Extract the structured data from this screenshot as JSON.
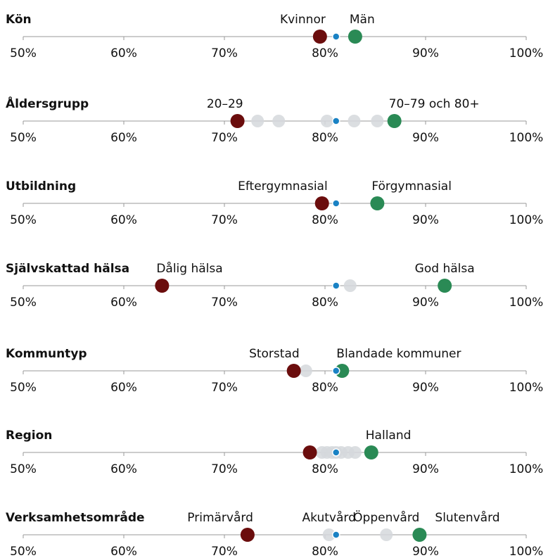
{
  "chart_data": [
    {
      "type": "dot",
      "title": "Kön",
      "xlim": [
        50,
        100
      ],
      "xticks": [
        {
          "value": 50,
          "label": "50%"
        },
        {
          "value": 60,
          "label": "60%"
        },
        {
          "value": 70,
          "label": "70%"
        },
        {
          "value": 80,
          "label": "80%"
        },
        {
          "value": 90,
          "label": "90%"
        },
        {
          "value": 100,
          "label": "100%"
        }
      ],
      "categories": [
        "Kvinnor",
        "Män"
      ],
      "values": [
        79.5,
        83.0
      ],
      "colors": [
        "#6b0d0d",
        "#2a8a55"
      ],
      "average": 81.1,
      "average_color": "#1a82c4"
    },
    {
      "type": "dot",
      "title": "Åldersgrupp",
      "xlim": [
        50,
        100
      ],
      "xticks": [
        {
          "value": 50,
          "label": "50%"
        },
        {
          "value": 60,
          "label": "60%"
        },
        {
          "value": 70,
          "label": "70%"
        },
        {
          "value": 80,
          "label": "80%"
        },
        {
          "value": 90,
          "label": "90%"
        },
        {
          "value": 100,
          "label": "100%"
        }
      ],
      "categories": [
        "20–29",
        null,
        null,
        null,
        null,
        null,
        "70–79 och 80+"
      ],
      "values": [
        71.3,
        73.3,
        75.4,
        80.2,
        82.9,
        85.2,
        86.9
      ],
      "colors": [
        "#6b0d0d",
        "#d5d8dc",
        "#d5d8dc",
        "#d5d8dc",
        "#d5d8dc",
        "#d5d8dc",
        "#2a8a55"
      ],
      "average": 81.1,
      "average_color": "#1a82c4"
    },
    {
      "type": "dot",
      "title": "Utbildning",
      "xlim": [
        50,
        100
      ],
      "xticks": [
        {
          "value": 50,
          "label": "50%"
        },
        {
          "value": 60,
          "label": "60%"
        },
        {
          "value": 70,
          "label": "70%"
        },
        {
          "value": 80,
          "label": "80%"
        },
        {
          "value": 90,
          "label": "90%"
        },
        {
          "value": 100,
          "label": "100%"
        }
      ],
      "categories": [
        "Eftergymnasial",
        "Förgymnasial"
      ],
      "values": [
        79.7,
        85.2
      ],
      "colors": [
        "#6b0d0d",
        "#2a8a55"
      ],
      "average": 81.1,
      "average_color": "#1a82c4"
    },
    {
      "type": "dot",
      "title": "Självskattad hälsa",
      "xlim": [
        50,
        100
      ],
      "xticks": [
        {
          "value": 50,
          "label": "50%"
        },
        {
          "value": 60,
          "label": "60%"
        },
        {
          "value": 70,
          "label": "70%"
        },
        {
          "value": 80,
          "label": "80%"
        },
        {
          "value": 90,
          "label": "90%"
        },
        {
          "value": 100,
          "label": "100%"
        }
      ],
      "categories": [
        "Dålig hälsa",
        null,
        "God hälsa"
      ],
      "values": [
        63.8,
        82.5,
        91.9
      ],
      "colors": [
        "#6b0d0d",
        "#d5d8dc",
        "#2a8a55"
      ],
      "average": 81.1,
      "average_color": "#1a82c4"
    },
    {
      "type": "dot",
      "title": "Kommuntyp",
      "xlim": [
        50,
        100
      ],
      "xticks": [
        {
          "value": 50,
          "label": "50%"
        },
        {
          "value": 60,
          "label": "60%"
        },
        {
          "value": 70,
          "label": "70%"
        },
        {
          "value": 80,
          "label": "80%"
        },
        {
          "value": 90,
          "label": "90%"
        },
        {
          "value": 100,
          "label": "100%"
        }
      ],
      "categories": [
        "Storstad",
        null,
        "Blandade kommuner"
      ],
      "values": [
        76.9,
        78.1,
        81.7
      ],
      "colors": [
        "#6b0d0d",
        "#d5d8dc",
        "#2a8a55"
      ],
      "average": 81.1,
      "average_color": "#1a82c4"
    },
    {
      "type": "dot",
      "title": "Region",
      "xlim": [
        50,
        100
      ],
      "xticks": [
        {
          "value": 50,
          "label": "50%"
        },
        {
          "value": 60,
          "label": "60%"
        },
        {
          "value": 70,
          "label": "70%"
        },
        {
          "value": 80,
          "label": "80%"
        },
        {
          "value": 90,
          "label": "90%"
        },
        {
          "value": 100,
          "label": "100%"
        }
      ],
      "categories": [
        null,
        null,
        null,
        null,
        null,
        null,
        null,
        null,
        "Halland"
      ],
      "values": [
        78.5,
        79.7,
        80.2,
        80.7,
        81.1,
        81.6,
        82.3,
        83.0,
        84.6
      ],
      "colors": [
        "#6b0d0d",
        "#d5d8dc",
        "#d5d8dc",
        "#d5d8dc",
        "#d5d8dc",
        "#d5d8dc",
        "#d5d8dc",
        "#d5d8dc",
        "#2a8a55"
      ],
      "average": 81.1,
      "average_color": "#1a82c4"
    },
    {
      "type": "dot",
      "title": "Verksamhetsområde",
      "xlim": [
        50,
        100
      ],
      "xticks": [
        {
          "value": 50,
          "label": "50%"
        },
        {
          "value": 60,
          "label": "60%"
        },
        {
          "value": 70,
          "label": "70%"
        },
        {
          "value": 80,
          "label": "80%"
        },
        {
          "value": 90,
          "label": "90%"
        },
        {
          "value": 100,
          "label": "100%"
        }
      ],
      "categories": [
        "Primärvård",
        "Akutvård",
        "Öppenvård",
        "Slutenvård"
      ],
      "values": [
        72.3,
        80.4,
        86.1,
        89.4
      ],
      "colors": [
        "#6b0d0d",
        "#d5d8dc",
        "#d5d8dc",
        "#2a8a55"
      ],
      "average": 81.1,
      "average_color": "#1a82c4"
    }
  ]
}
